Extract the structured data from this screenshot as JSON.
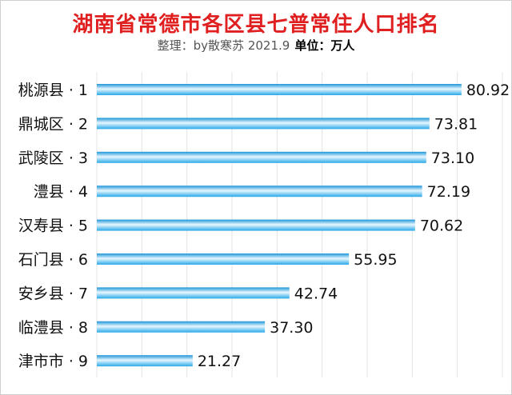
{
  "header": {
    "title": "湖南省常德市各区县七普常住人口排名",
    "credit": "整理：by散寒苏 2021.9",
    "unit": "单位：万人"
  },
  "chart_data": {
    "type": "bar",
    "orientation": "horizontal",
    "title": "湖南省常德市各区县七普常住人口排名",
    "subtitle": "整理：by散寒苏 2021.9 单位：万人",
    "categories": [
      "桃源县 · 1",
      "鼎城区 · 2",
      "武陵区 · 3",
      "澧县 · 4",
      "汉寿县 · 5",
      "石门县 · 6",
      "安乡县 · 7",
      "临澧县 · 8",
      "津市市 · 9"
    ],
    "values": [
      80.92,
      73.81,
      73.1,
      72.19,
      70.62,
      55.95,
      42.74,
      37.3,
      21.27
    ],
    "value_labels": [
      "80.92",
      "73.81",
      "73.10",
      "72.19",
      "70.62",
      "55.95",
      "42.74",
      "37.30",
      "21.27"
    ],
    "xlim": [
      0,
      90
    ],
    "grid": true,
    "bar_color": "#29a8e8",
    "bar_highlight": "#e8f7ff"
  }
}
